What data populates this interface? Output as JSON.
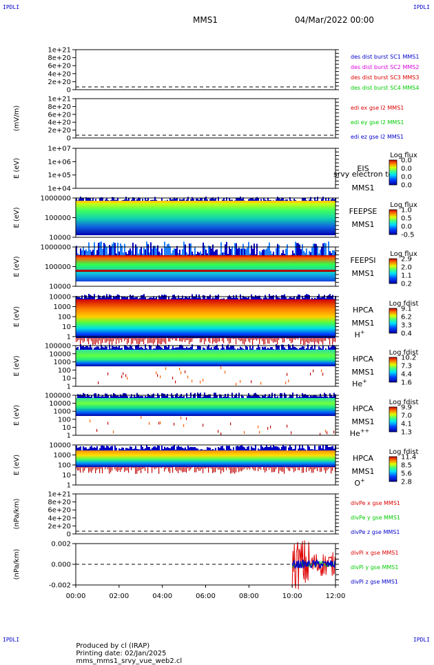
{
  "corners": {
    "label": "IPDLI"
  },
  "header": {
    "mission": "MMS1",
    "datetime": "04/Mar/2022 00:00"
  },
  "footer": {
    "produced_by": "Produced by cl (IRAP)",
    "printing_date": "Printing date: 02/Jan/2025",
    "filename": "mms_mms1_srvy_vue_web2.cl"
  },
  "colors": {
    "blue": "#0000cc",
    "magenta": "#dd00dd",
    "red": "#dd0000",
    "green": "#00cc00",
    "dashed": "#000000"
  },
  "chart_data": [
    {
      "id": "p1",
      "type": "line",
      "ylabel": "",
      "yticks": [
        "1e+21",
        "8e+20",
        "6e+20",
        "4e+20",
        "2e+20",
        "0"
      ],
      "series": [
        {
          "name": "des dist burst SC1 MMS1",
          "color": "#0000cc"
        },
        {
          "name": "des dist burst SC2 MMS2",
          "color": "#dd00dd"
        },
        {
          "name": "des dist burst SC3 MMS3",
          "color": "#dd0000"
        },
        {
          "name": "des dist burst SC4 MMS4",
          "color": "#00cc00"
        }
      ]
    },
    {
      "id": "p2",
      "type": "line",
      "ylabel": "(mV/m)",
      "yticks": [
        "1e+21",
        "8e+20",
        "6e+20",
        "4e+20",
        "2e+20",
        "0"
      ],
      "series": [
        {
          "name": "edi ex gse l2 MMS1",
          "color": "#dd0000"
        },
        {
          "name": "edi ey gse l2 MMS1",
          "color": "#00cc00"
        },
        {
          "name": "edi ez gse l2 MMS1",
          "color": "#0000cc"
        }
      ]
    },
    {
      "id": "p3",
      "type": "heatmap",
      "ylabel": "E (eV)",
      "yticks": [
        "1e+07",
        "1e+06",
        "1e+05",
        "1e+04"
      ],
      "labels": [
        "EIS",
        "MMS1"
      ],
      "overlay": "srvy electron to",
      "colorbar": {
        "title": "Log flux",
        "ticks": [
          "0.0",
          "0.0",
          "0.0",
          "0.0"
        ]
      }
    },
    {
      "id": "p4",
      "type": "heatmap",
      "ylabel": "E (eV)",
      "yticks": [
        "1000000",
        "100000",
        "10000"
      ],
      "labels": [
        "FEEPSE",
        "MMS1"
      ],
      "colorbar": {
        "title": "Log flux",
        "ticks": [
          "1.0",
          "0.5",
          "0.0",
          "-0.5"
        ]
      }
    },
    {
      "id": "p5",
      "type": "heatmap",
      "ylabel": "E (eV)",
      "yticks": [
        "1000000",
        "100000",
        "10000"
      ],
      "labels": [
        "FEEPSI",
        "MMS1"
      ],
      "colorbar": {
        "title": "Log flux",
        "ticks": [
          "2.9",
          "2.0",
          "1.1",
          "0.2"
        ]
      }
    },
    {
      "id": "p6",
      "type": "heatmap",
      "ylabel": "E (eV)",
      "yticks": [
        "10000",
        "1000",
        "100",
        "10",
        "1"
      ],
      "labels": [
        "HPCA",
        "MMS1"
      ],
      "species": "H",
      "charge": "+",
      "colorbar": {
        "title": "Log fdist",
        "ticks": [
          "9.1",
          "6.2",
          "3.3",
          "0.4"
        ]
      }
    },
    {
      "id": "p7",
      "type": "heatmap",
      "ylabel": "E (eV)",
      "yticks": [
        "100000",
        "10000",
        "1000",
        "100",
        "10",
        "1"
      ],
      "labels": [
        "HPCA",
        "MMS1"
      ],
      "species": "He",
      "charge": "+",
      "colorbar": {
        "title": "Log fdist",
        "ticks": [
          "10.2",
          "7.3",
          "4.4",
          "1.6"
        ]
      }
    },
    {
      "id": "p8",
      "type": "heatmap",
      "ylabel": "E (eV)",
      "yticks": [
        "100000",
        "10000",
        "1000",
        "100",
        "10",
        "1"
      ],
      "labels": [
        "HPCA",
        "MMS1"
      ],
      "species": "He",
      "charge": "++",
      "colorbar": {
        "title": "Log fdist",
        "ticks": [
          "9.9",
          "7.0",
          "4.1",
          "1.3"
        ]
      }
    },
    {
      "id": "p9",
      "type": "heatmap",
      "ylabel": "E (eV)",
      "yticks": [
        "10000",
        "1000",
        "100",
        "10",
        "1"
      ],
      "labels": [
        "HPCA",
        "MMS1"
      ],
      "species": "O",
      "charge": "+",
      "colorbar": {
        "title": "Log fdist",
        "ticks": [
          "11.4",
          "8.5",
          "5.6",
          "2.8"
        ]
      }
    },
    {
      "id": "p10",
      "type": "line",
      "ylabel": "(nPa/km)",
      "yticks": [
        "1e+21",
        "8e+20",
        "6e+20",
        "4e+20",
        "2e+20",
        "0"
      ],
      "series": [
        {
          "name": "divPe x gse MMS1",
          "color": "#dd0000"
        },
        {
          "name": "divPe y gse MMS1",
          "color": "#00cc00"
        },
        {
          "name": "divPe z gse MMS1",
          "color": "#0000cc"
        }
      ]
    },
    {
      "id": "p11",
      "type": "line",
      "ylabel": "(nPa/km)",
      "yticks": [
        "0.002",
        "0.000",
        "-0.002"
      ],
      "data_start": "10:00",
      "data_end": "12:00",
      "series": [
        {
          "name": "divPi x gse MMS1",
          "color": "#dd0000"
        },
        {
          "name": "divPi y gse MMS1",
          "color": "#00cc00"
        },
        {
          "name": "divPi z gse MMS1",
          "color": "#0000cc"
        }
      ]
    }
  ],
  "xaxis": {
    "ticks": [
      "00:00",
      "02:00",
      "04:00",
      "06:00",
      "08:00",
      "10:00",
      "12:00"
    ]
  }
}
